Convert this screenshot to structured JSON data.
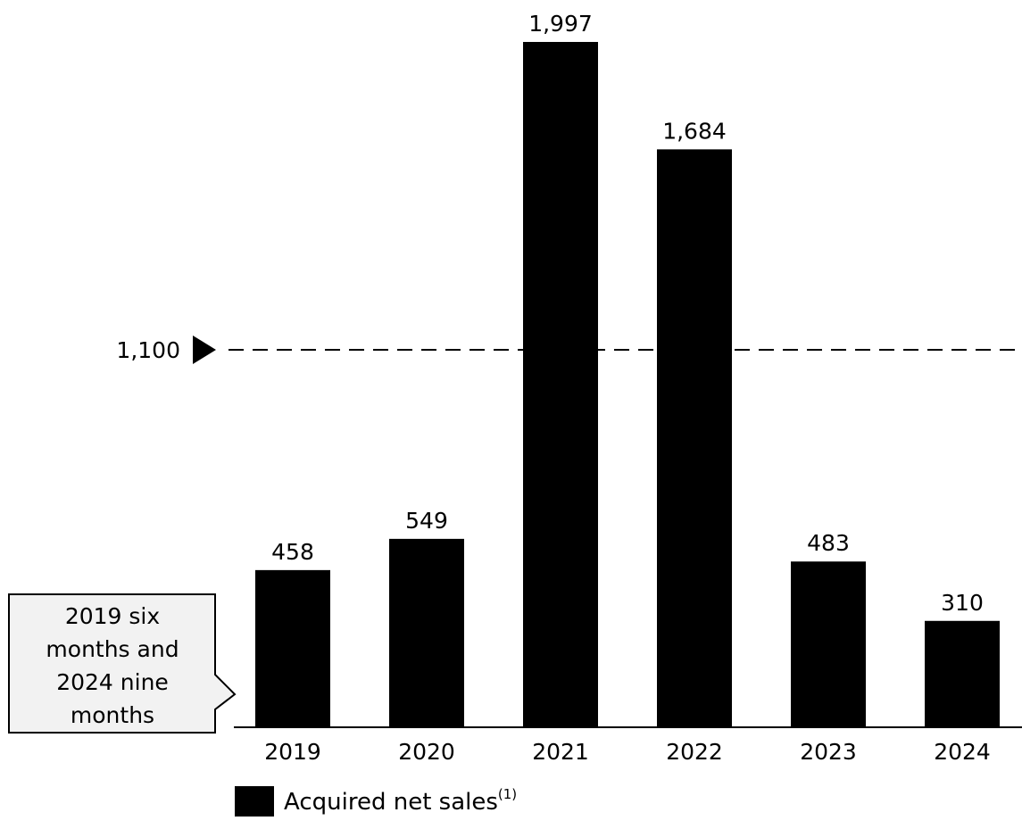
{
  "chart_data": {
    "type": "bar",
    "categories": [
      "2019",
      "2020",
      "2021",
      "2022",
      "2023",
      "2024"
    ],
    "series": [
      {
        "name": "Acquired net sales",
        "values": [
          458,
          549,
          1997,
          1684,
          483,
          310
        ]
      }
    ],
    "value_labels": [
      "458",
      "549",
      "1,997",
      "1,684",
      "483",
      "310"
    ],
    "reference_line": {
      "value": 1100,
      "label": "1,100",
      "style": "dashed"
    },
    "legend": {
      "label": "Acquired net sales",
      "superscript": "(1)",
      "placement": "bottom-left"
    },
    "callout": {
      "lines": [
        "2019 six",
        "months and",
        "2024 nine",
        "months"
      ]
    },
    "ylim": [
      0,
      2100
    ],
    "grid": false,
    "colors": {
      "bar": "#000000",
      "callout_fill": "#f2f2f2",
      "callout_border": "#000000",
      "reference_line": "#000000"
    }
  }
}
